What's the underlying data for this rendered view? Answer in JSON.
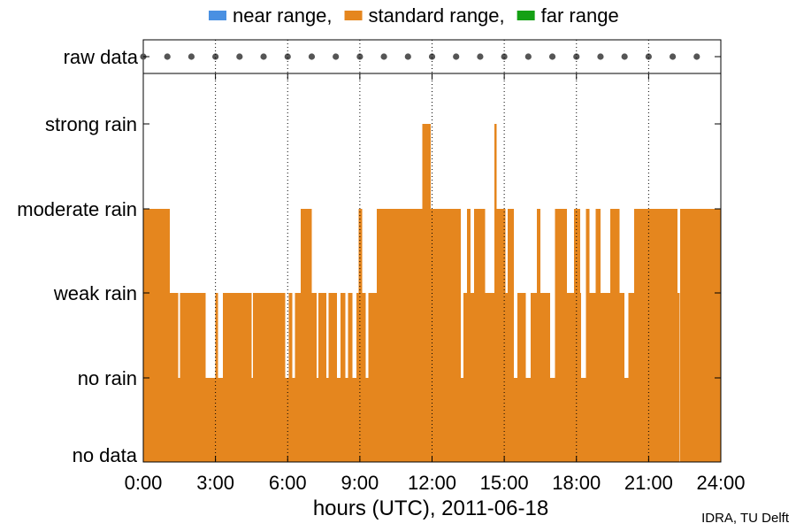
{
  "chart_data": {
    "type": "area",
    "xlabel": "hours (UTC), 2011-06-18",
    "x_ticks": [
      "0:00",
      "3:00",
      "6:00",
      "9:00",
      "12:00",
      "15:00",
      "18:00",
      "21:00",
      "24:00"
    ],
    "x_range": [
      0,
      24
    ],
    "y_categories": [
      "no data",
      "no rain",
      "weak rain",
      "moderate rain",
      "strong rain"
    ],
    "raw_data_label": "raw data",
    "raw_data_times": [
      0,
      1,
      2,
      3,
      4,
      5,
      6,
      7,
      8,
      9,
      10,
      11,
      12,
      13,
      14,
      15,
      16,
      17,
      18,
      19,
      20,
      21,
      22,
      23
    ],
    "legend": [
      {
        "name": "near range",
        "separator": ",",
        "color": "#4a90e2"
      },
      {
        "name": "standard range",
        "separator": ",",
        "color": "#e5861e"
      },
      {
        "name": "far range",
        "separator": "",
        "color": "#14a014"
      }
    ],
    "series": [
      {
        "name": "standard range",
        "color": "#e5861e",
        "segments": [
          [
            0.0,
            1.1,
            3
          ],
          [
            1.1,
            1.45,
            2
          ],
          [
            1.45,
            1.52,
            1
          ],
          [
            1.52,
            2.6,
            2
          ],
          [
            2.6,
            3.0,
            1
          ],
          [
            3.0,
            3.1,
            2
          ],
          [
            3.1,
            3.3,
            1
          ],
          [
            3.3,
            4.5,
            2
          ],
          [
            4.5,
            4.55,
            1
          ],
          [
            4.55,
            5.9,
            2
          ],
          [
            5.9,
            6.05,
            1
          ],
          [
            6.05,
            6.2,
            2
          ],
          [
            6.2,
            6.3,
            1
          ],
          [
            6.3,
            6.55,
            2
          ],
          [
            6.55,
            7.0,
            3
          ],
          [
            7.0,
            7.2,
            2
          ],
          [
            7.2,
            7.28,
            1
          ],
          [
            7.28,
            7.6,
            2
          ],
          [
            7.6,
            7.7,
            1
          ],
          [
            7.7,
            8.05,
            2
          ],
          [
            8.05,
            8.2,
            1
          ],
          [
            8.2,
            8.4,
            2
          ],
          [
            8.4,
            8.5,
            1
          ],
          [
            8.5,
            8.7,
            2
          ],
          [
            8.7,
            8.85,
            1
          ],
          [
            8.85,
            8.95,
            2
          ],
          [
            8.95,
            9.1,
            3
          ],
          [
            9.1,
            9.25,
            2
          ],
          [
            9.25,
            9.35,
            1
          ],
          [
            9.35,
            9.7,
            2
          ],
          [
            9.7,
            11.6,
            3
          ],
          [
            11.6,
            11.95,
            4
          ],
          [
            11.95,
            13.2,
            3
          ],
          [
            13.2,
            13.3,
            1
          ],
          [
            13.3,
            13.45,
            2
          ],
          [
            13.45,
            13.6,
            3
          ],
          [
            13.6,
            13.75,
            2
          ],
          [
            13.75,
            14.2,
            3
          ],
          [
            14.2,
            14.6,
            2
          ],
          [
            14.6,
            14.68,
            4
          ],
          [
            14.68,
            15.05,
            3
          ],
          [
            15.05,
            15.15,
            2
          ],
          [
            15.15,
            15.4,
            3
          ],
          [
            15.4,
            15.55,
            1
          ],
          [
            15.55,
            15.9,
            2
          ],
          [
            15.9,
            16.1,
            1
          ],
          [
            16.1,
            16.35,
            2
          ],
          [
            16.35,
            16.5,
            3
          ],
          [
            16.5,
            16.9,
            2
          ],
          [
            16.9,
            17.1,
            1
          ],
          [
            17.1,
            17.6,
            3
          ],
          [
            17.6,
            17.9,
            2
          ],
          [
            17.9,
            18.15,
            3
          ],
          [
            18.15,
            18.2,
            2
          ],
          [
            18.2,
            18.4,
            1
          ],
          [
            18.4,
            18.55,
            3
          ],
          [
            18.55,
            18.8,
            2
          ],
          [
            18.8,
            19.0,
            3
          ],
          [
            19.0,
            19.4,
            2
          ],
          [
            19.4,
            19.8,
            3
          ],
          [
            19.8,
            20.0,
            2
          ],
          [
            20.0,
            20.15,
            1
          ],
          [
            20.15,
            20.4,
            2
          ],
          [
            20.4,
            22.2,
            3
          ],
          [
            22.2,
            22.3,
            2
          ],
          [
            22.3,
            24.0,
            3
          ]
        ]
      }
    ],
    "credit": "IDRA, TU Delft"
  }
}
